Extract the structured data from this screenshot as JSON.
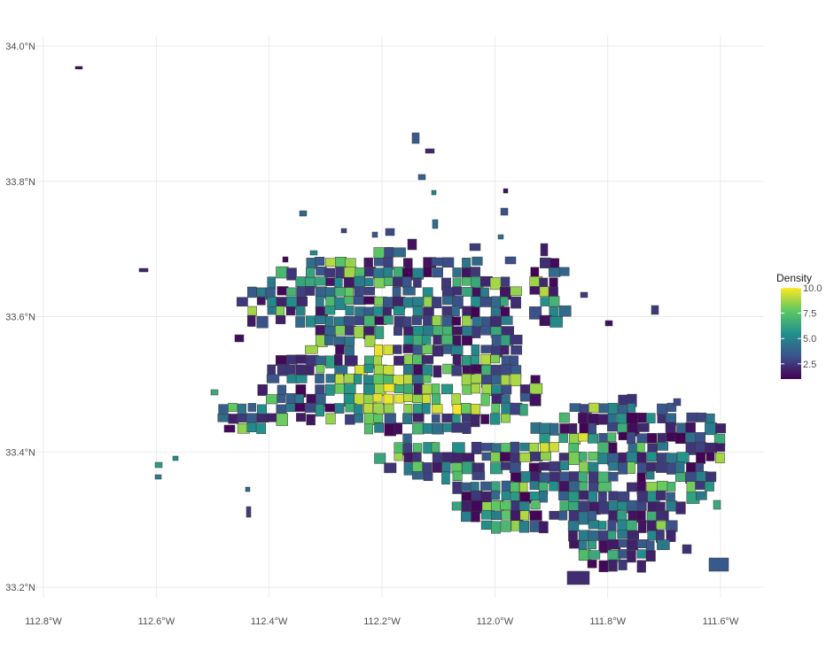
{
  "chart_data": {
    "type": "choropleth",
    "xlim": [
      -112.82,
      -111.52
    ],
    "ylim": [
      33.195,
      34.01
    ],
    "x_ticks": [
      {
        "value": -112.8,
        "label": "112.8°W"
      },
      {
        "value": -112.6,
        "label": "112.6°W"
      },
      {
        "value": -112.4,
        "label": "112.4°W"
      },
      {
        "value": -112.2,
        "label": "112.2°W"
      },
      {
        "value": -112.0,
        "label": "112.0°W"
      },
      {
        "value": -111.8,
        "label": "111.8°W"
      },
      {
        "value": -111.6,
        "label": "111.6°W"
      }
    ],
    "y_ticks": [
      {
        "value": 33.2,
        "label": "33.2°N"
      },
      {
        "value": 33.4,
        "label": "33.4°N"
      },
      {
        "value": 33.6,
        "label": "33.6°N"
      },
      {
        "value": 33.8,
        "label": "33.8°N"
      },
      {
        "value": 34.0,
        "label": "34.0°N"
      }
    ],
    "grid": true,
    "legend": {
      "title": "Density",
      "position": "right",
      "range": [
        1,
        10
      ],
      "breaks": [
        {
          "value": 10.0,
          "label": "10.0"
        },
        {
          "value": 7.5,
          "label": "7.5"
        },
        {
          "value": 5.0,
          "label": "5.0"
        },
        {
          "value": 2.5,
          "label": "2.5"
        }
      ],
      "palette": [
        "#440154",
        "#3b528b",
        "#21908c",
        "#5dc863",
        "#fde725"
      ]
    }
  }
}
